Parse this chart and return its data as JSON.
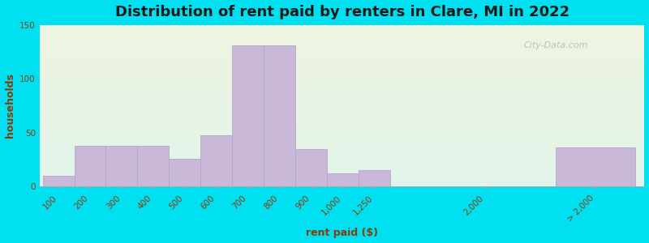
{
  "title": "Distribution of rent paid by renters in Clare, MI in 2022",
  "xlabel": "rent paid ($)",
  "ylabel": "households",
  "bar_color": "#c9b8d8",
  "bar_edgecolor": "#b0a0c0",
  "background_outer": "#00e0f0",
  "background_inner_top": "#eef4e0",
  "background_inner_bottom": "#e2f4ea",
  "ylim": [
    0,
    150
  ],
  "yticks": [
    0,
    50,
    100,
    150
  ],
  "categories": [
    "100",
    "200",
    "300",
    "400",
    "500",
    "600",
    "700",
    "800",
    "900",
    "1,000",
    "1,250",
    "2,000",
    "> 2,000"
  ],
  "values": [
    10,
    38,
    38,
    38,
    26,
    48,
    131,
    131,
    35,
    12,
    15,
    0,
    36
  ],
  "title_fontsize": 13,
  "axis_label_fontsize": 9,
  "tick_fontsize": 7.5,
  "tick_color": "#8b3a0a",
  "axis_label_color": "#8b3a0a",
  "title_color": "#1a1a1a",
  "gridline_color": "#d8d8d8",
  "watermark": "City-Data.com"
}
